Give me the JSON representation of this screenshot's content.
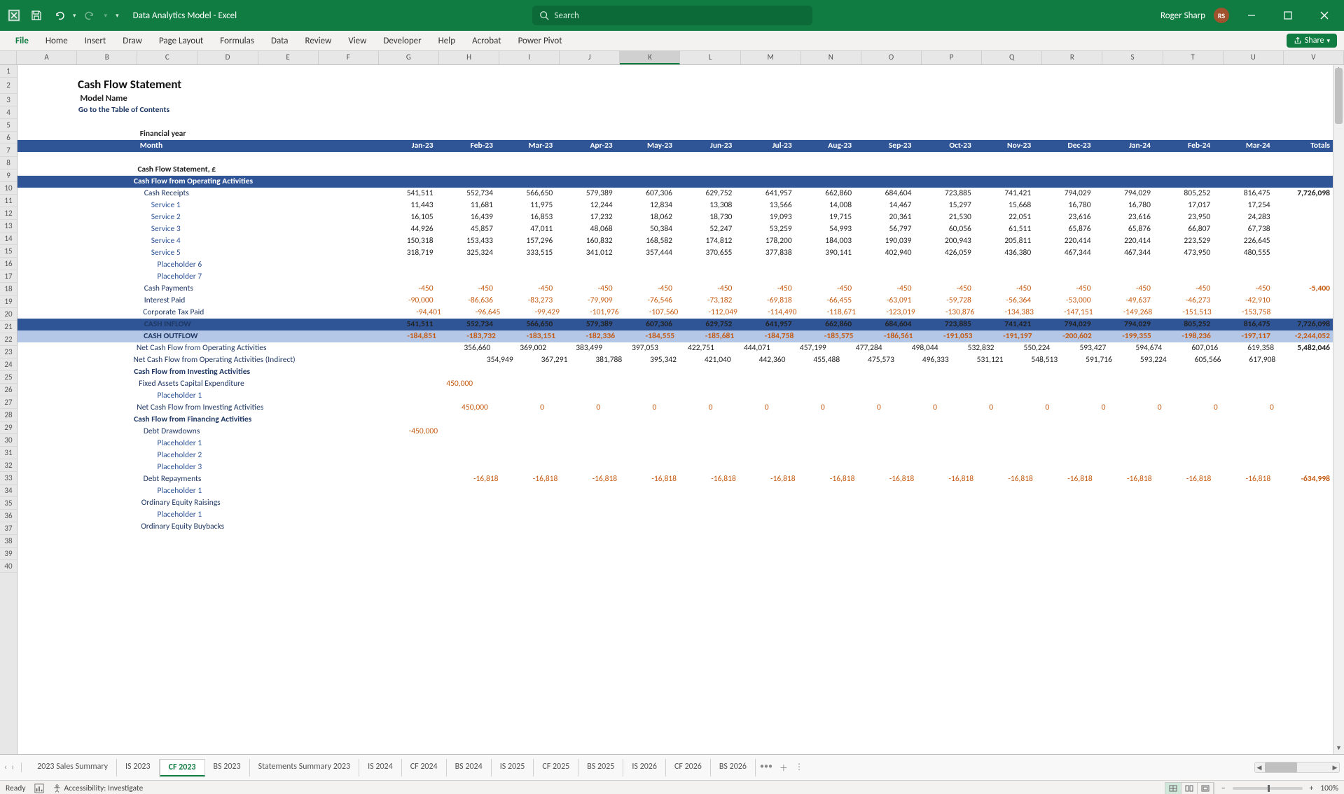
{
  "titleBar": {
    "docname": "Data Analytics Model  -  Excel",
    "searchPlaceholder": "Search",
    "userName": "Roger Sharp",
    "userInitials": "RS"
  },
  "ribbon": {
    "tabs": [
      "File",
      "Home",
      "Insert",
      "Draw",
      "Page Layout",
      "Formulas",
      "Data",
      "Review",
      "View",
      "Developer",
      "Help",
      "Acrobat",
      "Power Pivot"
    ],
    "shareLabel": "Share"
  },
  "columns": [
    "A",
    "B",
    "C",
    "D",
    "E",
    "F",
    "G",
    "H",
    "I",
    "J",
    "K",
    "L",
    "M",
    "N",
    "O",
    "P",
    "Q",
    "R",
    "S",
    "T",
    "U",
    "V"
  ],
  "selectedCol": "K",
  "rowCount": 40,
  "content": {
    "title": "Cash Flow Statement",
    "modelName": "Model Name",
    "toc": "Go to the Table of Contents",
    "finYearLabel": "Financial year",
    "monthLabel": "Month",
    "months": [
      "Jan-23",
      "Feb-23",
      "Mar-23",
      "Apr-23",
      "May-23",
      "Jun-23",
      "Jul-23",
      "Aug-23",
      "Sep-23",
      "Oct-23",
      "Nov-23",
      "Dec-23",
      "Jan-24",
      "Feb-24",
      "Mar-24"
    ],
    "totalsLabel": "Totals",
    "cfsLabel": "Cash Flow Statement, £",
    "sectionOperating": "Cash Flow from Operating Activities",
    "rows": [
      {
        "label": "Cash Receipts",
        "indent": 2,
        "style": "label",
        "vals": [
          "541,511",
          "552,734",
          "566,650",
          "579,389",
          "607,306",
          "629,752",
          "641,957",
          "662,860",
          "684,604",
          "723,885",
          "741,421",
          "794,029",
          "794,029",
          "805,252",
          "816,475"
        ],
        "total": "7,726,098",
        "bold": false
      },
      {
        "label": "Service 1",
        "indent": 3,
        "style": "svc",
        "vals": [
          "11,443",
          "11,681",
          "11,975",
          "12,244",
          "12,834",
          "13,308",
          "13,566",
          "14,008",
          "14,467",
          "15,297",
          "15,668",
          "16,780",
          "16,780",
          "17,017",
          "17,254"
        ],
        "total": ""
      },
      {
        "label": "Service 2",
        "indent": 3,
        "style": "svc",
        "vals": [
          "16,105",
          "16,439",
          "16,853",
          "17,232",
          "18,062",
          "18,730",
          "19,093",
          "19,715",
          "20,361",
          "21,530",
          "22,051",
          "23,616",
          "23,616",
          "23,950",
          "24,283"
        ],
        "total": ""
      },
      {
        "label": "Service 3",
        "indent": 3,
        "style": "svc",
        "vals": [
          "44,926",
          "45,857",
          "47,011",
          "48,068",
          "50,384",
          "52,247",
          "53,259",
          "54,993",
          "56,797",
          "60,056",
          "61,511",
          "65,876",
          "65,876",
          "66,807",
          "67,738"
        ],
        "total": ""
      },
      {
        "label": "Service 4",
        "indent": 3,
        "style": "svc",
        "vals": [
          "150,318",
          "153,433",
          "157,296",
          "160,832",
          "168,582",
          "174,812",
          "178,200",
          "184,003",
          "190,039",
          "200,943",
          "205,811",
          "220,414",
          "220,414",
          "223,529",
          "226,645"
        ],
        "total": ""
      },
      {
        "label": "Service 5",
        "indent": 3,
        "style": "svc",
        "vals": [
          "318,719",
          "325,324",
          "333,515",
          "341,012",
          "357,444",
          "370,655",
          "377,838",
          "390,141",
          "402,940",
          "426,059",
          "436,380",
          "467,344",
          "467,344",
          "473,950",
          "480,555"
        ],
        "total": ""
      },
      {
        "label": "Placeholder 6",
        "indent": 4,
        "style": "svc",
        "vals": [
          "",
          "",
          "",
          "",
          "",
          "",
          "",
          "",
          "",
          "",
          "",
          "",
          "",
          "",
          ""
        ],
        "total": ""
      },
      {
        "label": "Placeholder 7",
        "indent": 4,
        "style": "svc",
        "vals": [
          "",
          "",
          "",
          "",
          "",
          "",
          "",
          "",
          "",
          "",
          "",
          "",
          "",
          "",
          ""
        ],
        "total": ""
      },
      {
        "label": "Cash Payments",
        "indent": 2,
        "style": "label",
        "vals": [
          "-450",
          "-450",
          "-450",
          "-450",
          "-450",
          "-450",
          "-450",
          "-450",
          "-450",
          "-450",
          "-450",
          "-450",
          "-450",
          "-450",
          "-450"
        ],
        "total": "-5,400",
        "neg": true
      },
      {
        "label": "Interest Paid",
        "indent": 2,
        "style": "label",
        "vals": [
          "-90,000",
          "-86,636",
          "-83,273",
          "-79,909",
          "-76,546",
          "-73,182",
          "-69,818",
          "-66,455",
          "-63,091",
          "-59,728",
          "-56,364",
          "-53,000",
          "-49,637",
          "-46,273",
          "-42,910"
        ],
        "total": "",
        "neg": true
      },
      {
        "label": "Corporate Tax Paid",
        "indent": 2,
        "style": "label",
        "vals": [
          "-94,401",
          "-96,645",
          "-99,429",
          "-101,976",
          "-107,560",
          "-112,049",
          "-114,490",
          "-118,671",
          "-123,019",
          "-130,876",
          "-134,383",
          "-147,151",
          "-149,268",
          "-151,513",
          "-153,758"
        ],
        "total": "",
        "neg": true
      },
      {
        "label": "CASH INFLOW",
        "indent": 2,
        "style": "inflow",
        "vals": [
          "541,511",
          "552,734",
          "566,650",
          "579,389",
          "607,306",
          "629,752",
          "641,957",
          "662,860",
          "684,604",
          "723,885",
          "741,421",
          "794,029",
          "794,029",
          "805,252",
          "816,475"
        ],
        "total": "7,726,098"
      },
      {
        "label": "CASH OUTFLOW",
        "indent": 2,
        "style": "outflow",
        "vals": [
          "-184,851",
          "-183,732",
          "-183,151",
          "-182,336",
          "-184,555",
          "-185,681",
          "-184,758",
          "-185,575",
          "-186,561",
          "-191,053",
          "-191,197",
          "-200,602",
          "-199,355",
          "-198,236",
          "-197,117"
        ],
        "total": "-2,244,052"
      },
      {
        "label": "Net Cash Flow from Operating Activities",
        "indent": 2,
        "style": "label",
        "vals": [
          "356,660",
          "369,002",
          "383,499",
          "397,053",
          "422,751",
          "444,071",
          "457,199",
          "477,284",
          "498,044",
          "532,832",
          "550,224",
          "593,427",
          "594,674",
          "607,016",
          "619,358"
        ],
        "total": "5,482,046",
        "bold": false
      },
      {
        "label": "Net Cash Flow from Operating Activities (Indirect)",
        "indent": 2,
        "style": "label",
        "vals": [
          "354,949",
          "367,291",
          "381,788",
          "395,342",
          "421,040",
          "442,360",
          "455,488",
          "475,573",
          "496,333",
          "531,121",
          "548,513",
          "591,716",
          "593,224",
          "605,566",
          "617,908"
        ],
        "total": "",
        "bold": false
      }
    ],
    "sectionInvesting": "Cash Flow from Investing Activities",
    "rowsInv": [
      {
        "label": "Fixed Assets Capital Expenditure",
        "indent": 2,
        "style": "label",
        "vals": [
          "450,000",
          "",
          "",
          "",
          "",
          "",
          "",
          "",
          "",
          "",
          "",
          "",
          "",
          "",
          ""
        ],
        "total": "",
        "neg": true
      },
      {
        "label": "Placeholder 1",
        "indent": 4,
        "style": "svc",
        "vals": [
          "",
          "",
          "",
          "",
          "",
          "",
          "",
          "",
          "",
          "",
          "",
          "",
          "",
          "",
          ""
        ],
        "total": ""
      },
      {
        "label": "Net Cash Flow from Investing Activities",
        "indent": 2,
        "style": "label",
        "vals": [
          "450,000",
          "0",
          "0",
          "0",
          "0",
          "0",
          "0",
          "0",
          "0",
          "0",
          "0",
          "0",
          "0",
          "0",
          "0"
        ],
        "total": "",
        "neg": true
      }
    ],
    "sectionFinancing": "Cash Flow from Financing Activities",
    "rowsFin": [
      {
        "label": "Debt Drawdowns",
        "indent": 2,
        "style": "label",
        "vals": [
          "-450,000",
          "",
          "",
          "",
          "",
          "",
          "",
          "",
          "",
          "",
          "",
          "",
          "",
          "",
          ""
        ],
        "total": "",
        "neg": true
      },
      {
        "label": "Placeholder 1",
        "indent": 4,
        "style": "svc",
        "vals": [
          "",
          "",
          "",
          "",
          "",
          "",
          "",
          "",
          "",
          "",
          "",
          "",
          "",
          "",
          ""
        ],
        "total": ""
      },
      {
        "label": "Placeholder 2",
        "indent": 4,
        "style": "svc",
        "vals": [
          "",
          "",
          "",
          "",
          "",
          "",
          "",
          "",
          "",
          "",
          "",
          "",
          "",
          "",
          ""
        ],
        "total": ""
      },
      {
        "label": "Placeholder 3",
        "indent": 4,
        "style": "svc",
        "vals": [
          "",
          "",
          "",
          "",
          "",
          "",
          "",
          "",
          "",
          "",
          "",
          "",
          "",
          "",
          ""
        ],
        "total": ""
      },
      {
        "label": "Debt Repayments",
        "indent": 2,
        "style": "label",
        "vals": [
          "",
          "-16,818",
          "-16,818",
          "-16,818",
          "-16,818",
          "-16,818",
          "-16,818",
          "-16,818",
          "-16,818",
          "-16,818",
          "-16,818",
          "-16,818",
          "-16,818",
          "-16,818",
          "-16,818"
        ],
        "total": "-634,998",
        "neg": true
      },
      {
        "label": "Placeholder 1",
        "indent": 4,
        "style": "svc",
        "vals": [
          "",
          "",
          "",
          "",
          "",
          "",
          "",
          "",
          "",
          "",
          "",
          "",
          "",
          "",
          ""
        ],
        "total": ""
      },
      {
        "label": "Ordinary Equity Raisings",
        "indent": 2,
        "style": "label",
        "vals": [
          "",
          "",
          "",
          "",
          "",
          "",
          "",
          "",
          "",
          "",
          "",
          "",
          "",
          "",
          ""
        ],
        "total": ""
      },
      {
        "label": "Placeholder 1",
        "indent": 4,
        "style": "svc",
        "vals": [
          "",
          "",
          "",
          "",
          "",
          "",
          "",
          "",
          "",
          "",
          "",
          "",
          "",
          "",
          ""
        ],
        "total": ""
      },
      {
        "label": "Ordinary Equity Buybacks",
        "indent": 2,
        "style": "label",
        "vals": [
          "",
          "",
          "",
          "",
          "",
          "",
          "",
          "",
          "",
          "",
          "",
          "",
          "",
          "",
          ""
        ],
        "total": ""
      }
    ]
  },
  "sheetTabs": [
    "2023 Sales Summary",
    "IS 2023",
    "CF 2023",
    "BS 2023",
    "Statements Summary 2023",
    "IS 2024",
    "CF 2024",
    "BS 2024",
    "IS 2025",
    "CF 2025",
    "BS 2025",
    "IS 2026",
    "CF 2026",
    "BS 2026"
  ],
  "activeSheet": "CF 2023",
  "statusBar": {
    "ready": "Ready",
    "accessibility": "Accessibility: Investigate",
    "zoom": "100%"
  },
  "colors": {
    "excelGreen": "#107c41",
    "headerBlue": "#2f5597",
    "outflowBlue": "#b4c7e7",
    "labelBlue": "#1f3864",
    "negOrange": "#c55a11"
  }
}
